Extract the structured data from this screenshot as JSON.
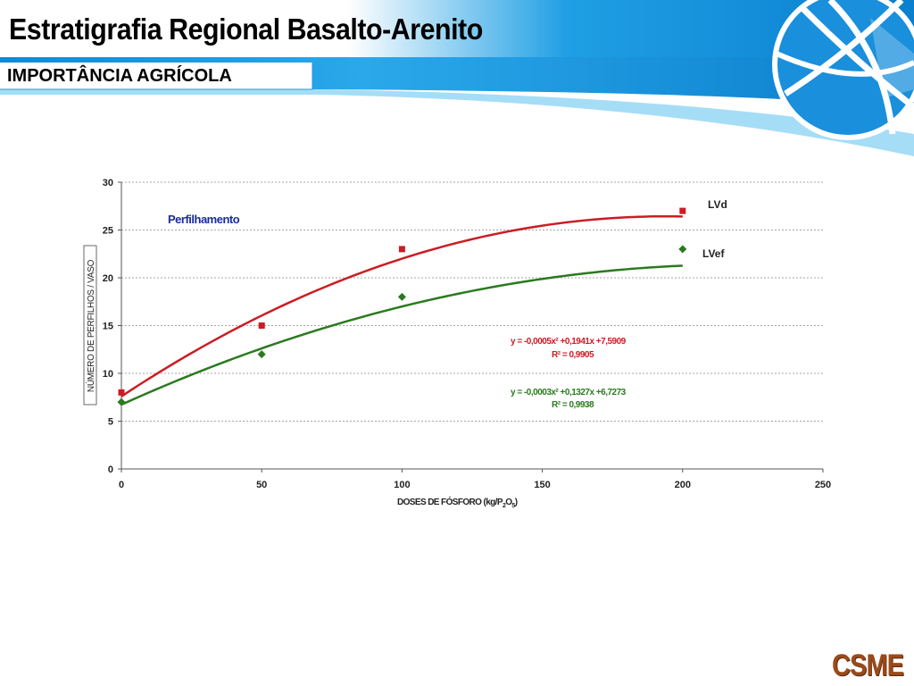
{
  "slide": {
    "title": "Estratigrafia Regional Basalto-Arenito",
    "subtitle": "IMPORTÂNCIA AGRÍCOLA",
    "logo_text": "CSME"
  },
  "colors": {
    "header_blue": "#1a9be0",
    "header_light": "#8fd4f5",
    "lvd": "#cc1c24",
    "lvef": "#2a7a1e",
    "annotation_blue": "#1a2c9c"
  },
  "icons": [
    "globe-icon"
  ],
  "chart_data": {
    "type": "scatter",
    "title": "Perfilhamento",
    "xlabel_parts": [
      "DOSES DE FÓSFORO (kg/P",
      "2",
      "O",
      "5",
      ")"
    ],
    "ylabel": "NÚMERO DE PERFILHOS / VASO",
    "xlim": [
      0,
      250
    ],
    "ylim": [
      0,
      30
    ],
    "xticks": [
      0,
      50,
      100,
      150,
      200,
      250
    ],
    "yticks": [
      0,
      5,
      10,
      15,
      20,
      25,
      30
    ],
    "grid": "horizontal-dashed",
    "series": [
      {
        "name": "LVd",
        "marker": "square",
        "color": "#cc1c24",
        "x": [
          0,
          50,
          100,
          200
        ],
        "y": [
          8,
          15,
          23,
          27
        ],
        "fit": {
          "a": -0.0005,
          "b": 0.1941,
          "c": 7.5909
        },
        "equation": "y = -0,0005x² +0,1941x +7,5909",
        "r2": "R² = 0,9905"
      },
      {
        "name": "LVef",
        "marker": "diamond",
        "color": "#2a7a1e",
        "x": [
          0,
          50,
          100,
          200
        ],
        "y": [
          7,
          12,
          18,
          23
        ],
        "fit": {
          "a": -0.0003,
          "b": 0.1327,
          "c": 6.7273
        },
        "equation": "y = -0,0003x² +0,1327x +6,7273",
        "r2": "R² = 0,9938"
      }
    ]
  }
}
